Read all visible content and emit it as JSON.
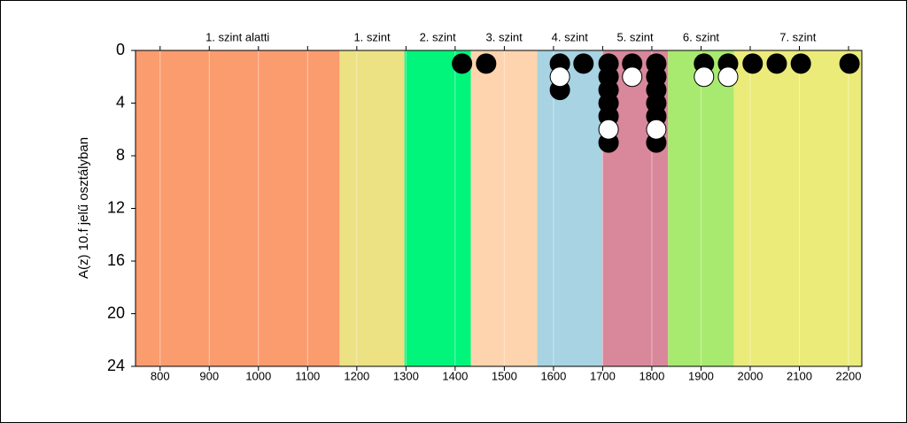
{
  "chart_data": {
    "type": "dot",
    "y_label": "A(z) 10.f jelű osztályban",
    "xlim": [
      750,
      2227
    ],
    "xticks": [
      800,
      900,
      1000,
      1100,
      1200,
      1300,
      1400,
      1500,
      1600,
      1700,
      1800,
      1900,
      2000,
      2100,
      2200
    ],
    "ylim": [
      24,
      0
    ],
    "yticks": [
      0,
      4,
      8,
      12,
      16,
      20,
      24
    ],
    "grid": true,
    "bands": [
      {
        "label": "1. szint alatti",
        "from": 750,
        "to": 1165,
        "color": "#fb9c6e"
      },
      {
        "label": "1. szint",
        "from": 1165,
        "to": 1297,
        "color": "#ece183"
      },
      {
        "label": "2. szint",
        "from": 1297,
        "to": 1432,
        "color": "#00f57a"
      },
      {
        "label": "3. szint",
        "from": 1432,
        "to": 1567,
        "color": "#fdd4ad"
      },
      {
        "label": "4. szint",
        "from": 1567,
        "to": 1699,
        "color": "#a7d3e2"
      },
      {
        "label": "5. szint",
        "from": 1699,
        "to": 1833,
        "color": "#d9879b"
      },
      {
        "label": "6. szint",
        "from": 1833,
        "to": 1967,
        "color": "#a8ea6f"
      },
      {
        "label": "7. szint",
        "from": 1967,
        "to": 2227,
        "color": "#ebeb7a"
      }
    ],
    "series": [
      {
        "color": "#000000",
        "x": [
          1414,
          1463,
          1613,
          1613,
          1661,
          1712,
          1712,
          1712,
          1712,
          1712,
          1712,
          1760,
          1809,
          1809,
          1809,
          1809,
          1809,
          1809,
          1906,
          1955,
          2005,
          2054,
          2103,
          2202
        ],
        "values": [
          1,
          1,
          1,
          3,
          1,
          1,
          2,
          3,
          4,
          5,
          7,
          1,
          1,
          2,
          3,
          4,
          5,
          7,
          1,
          1,
          1,
          1,
          1,
          1
        ]
      },
      {
        "color": "#ffffff",
        "x": [
          1613,
          1712,
          1760,
          1809,
          1906,
          1955
        ],
        "values": [
          2,
          6,
          2,
          6,
          2,
          2
        ]
      }
    ]
  }
}
